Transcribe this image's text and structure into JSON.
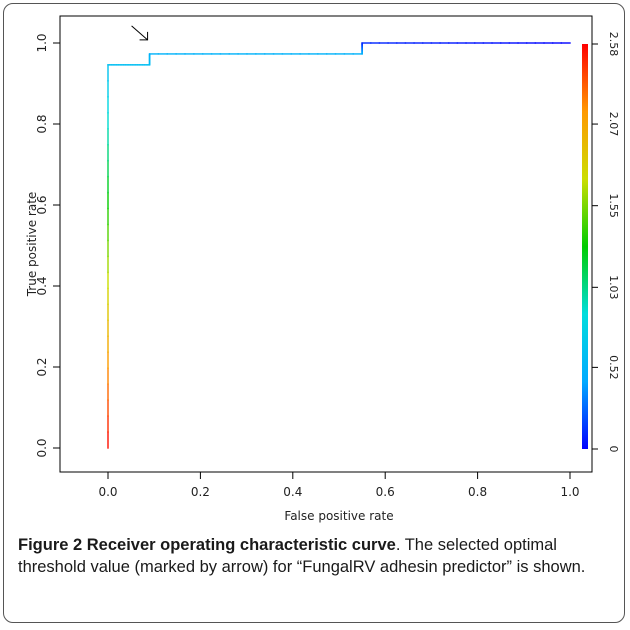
{
  "chart_data": {
    "type": "line",
    "xlabel": "False positive rate",
    "ylabel": "True positive rate",
    "xlim": [
      0,
      1
    ],
    "ylim": [
      0,
      1
    ],
    "x_ticks": [
      "0.0",
      "0.2",
      "0.4",
      "0.6",
      "0.8",
      "1.0"
    ],
    "y_ticks": [
      "0.0",
      "0.2",
      "0.4",
      "0.6",
      "0.8",
      "1.0"
    ],
    "grid": false,
    "series": [
      {
        "x": [
          0,
          0,
          0.09,
          0.09,
          0.55,
          0.55,
          1.0
        ],
        "y": [
          0,
          0.946,
          0.946,
          0.973,
          0.973,
          1.0,
          1.0
        ],
        "threshold": [
          2.58,
          0.6,
          0.6,
          0.5,
          0.5,
          0.1,
          0.0
        ]
      }
    ],
    "colorbar": {
      "ticks": [
        "0",
        "0.52",
        "1.03",
        "1.55",
        "2.07",
        "2.58"
      ],
      "min": 0,
      "max": 2.58,
      "colors": [
        "#0000ff",
        "#00aaff",
        "#00dddd",
        "#00cc00",
        "#ccdd00",
        "#ff9900",
        "#ff0000"
      ]
    },
    "annotation": {
      "type": "arrow",
      "x": 0.09,
      "y": 0.973
    }
  },
  "caption": {
    "bold": "Figure 2 Receiver operating characteristic curve",
    "text": ". The selected optimal threshold value (marked by arrow) for “FungalRV adhesin predictor” is shown."
  }
}
